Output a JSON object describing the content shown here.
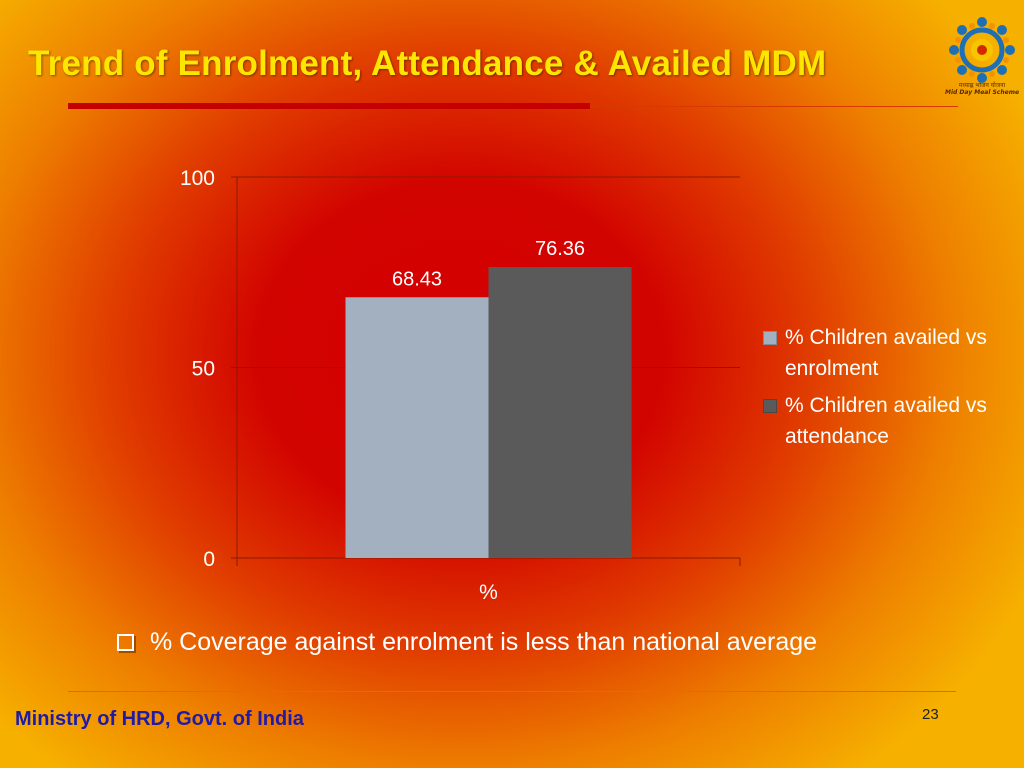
{
  "slide": {
    "title": "Trend of Enrolment, Attendance & Availed MDM",
    "bullet": "% Coverage against enrolment is less than national average",
    "footer": "Ministry of HRD, Govt. of India",
    "page_number": "23"
  },
  "logo": {
    "icon": "mid-day-meal-scheme-logo",
    "caption_hindi": "मध्याह्न भोजन योजना",
    "caption_english": "Mid Day Meal Scheme"
  },
  "colors": {
    "title": "#ffe600",
    "footer": "#1f1aa8",
    "accent_rule": "#c40000"
  },
  "chart_data": {
    "type": "bar",
    "categories": [
      "%"
    ],
    "series": [
      {
        "name": "% Children availed vs enrolment",
        "values": [
          68.43
        ],
        "color": "#a3b0bf"
      },
      {
        "name": "% Children availed vs attendance",
        "values": [
          76.36
        ],
        "color": "#5a5a5a"
      }
    ],
    "data_labels": [
      "68.43",
      "76.36"
    ],
    "y_ticks": [
      0,
      50,
      100
    ],
    "ylim": [
      0,
      100
    ],
    "legend": "right",
    "grid": true
  }
}
